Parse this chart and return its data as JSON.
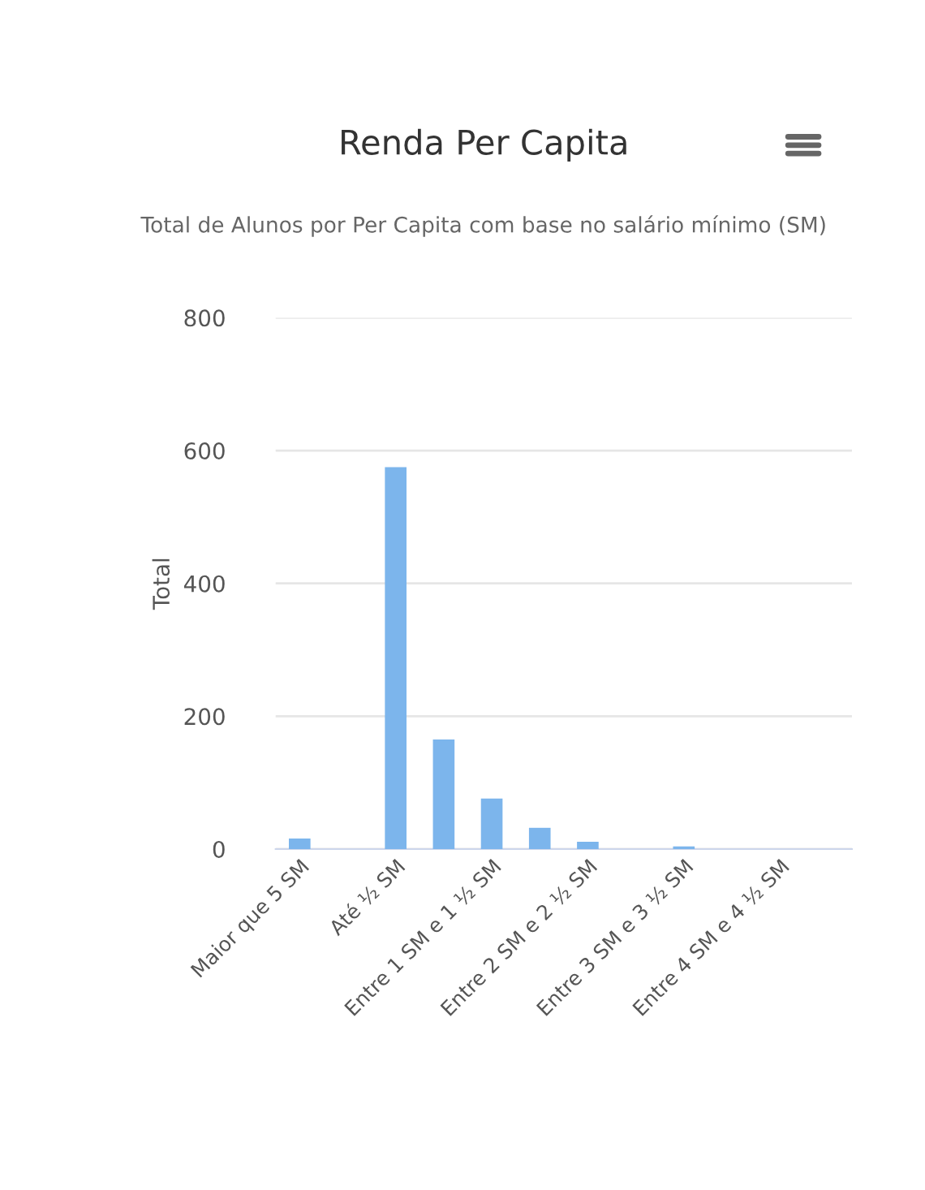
{
  "chart_data": {
    "type": "bar",
    "title": "Renda Per Capita",
    "subtitle": "Total de Alunos por Per Capita com base no salário mínimo (SM)",
    "ylabel": "Total",
    "categories": [
      "Maior que 5 SM",
      null,
      "Até ½ SM",
      null,
      "Entre 1 SM e 1 ½ SM",
      null,
      "Entre 2 SM e 2 ½ SM",
      null,
      "Entre 3 SM e 3 ½ SM",
      null,
      "Entre 4 SM e 4 ½ SM",
      null
    ],
    "values": [
      16,
      0,
      575,
      165,
      76,
      32,
      11,
      0,
      4,
      0,
      0,
      0
    ],
    "color": "#7cb5ec",
    "ylim": [
      0,
      800
    ],
    "yticks": [
      0,
      200,
      400,
      600,
      800
    ],
    "grid": "y",
    "legend": false
  }
}
